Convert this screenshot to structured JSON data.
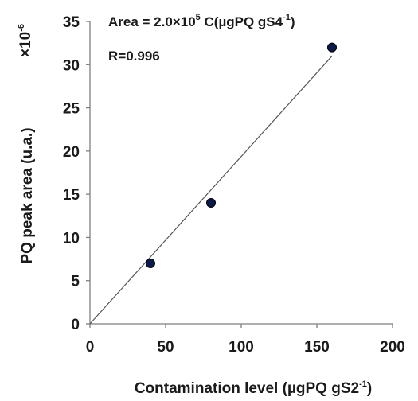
{
  "chart_data": {
    "type": "scatter",
    "x": [
      40,
      80,
      160
    ],
    "y": [
      7,
      14,
      32
    ],
    "fit_line": {
      "x": [
        0,
        160
      ],
      "y": [
        0,
        31
      ]
    },
    "xlim": [
      0,
      200
    ],
    "ylim": [
      0,
      35
    ],
    "xticks": [
      "0",
      "50",
      "100",
      "150",
      "200"
    ],
    "yticks": [
      "0",
      "5",
      "10",
      "15",
      "20",
      "25",
      "30",
      "35"
    ],
    "xlabel_main": "Contamination  level (µgPQ gS2",
    "xlabel_sup": "-1",
    "xlabel_end": ")",
    "ylabel": "PQ peak area (u.a.)",
    "y_multiplier_main": "×10",
    "y_multiplier_sup": "-6",
    "equation_main": "Area = 2.0×10",
    "equation_sup1": "5",
    "equation_mid": " C(µgPQ gS4",
    "equation_sup2": "-1",
    "equation_end": ")",
    "r_text": "R=0.996",
    "grid": false,
    "marker_color": "#0a1a4a",
    "line_color": "#555555",
    "axis_color": "#7f7f7f"
  }
}
